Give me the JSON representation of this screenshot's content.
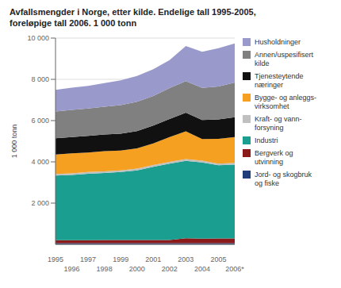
{
  "chart_data": {
    "type": "area",
    "title": "Avfallsmengder i Norge, etter kilde. Endelige tall 1995-2005,\nforeløpige tall 2006. 1 000 tonn",
    "ylabel": "1 000 tonn",
    "categories": [
      "1995",
      "1996",
      "1997",
      "1998",
      "1999",
      "2000",
      "2001",
      "2002",
      "2003",
      "2004",
      "2005",
      "2006*"
    ],
    "series": [
      {
        "name": "Jord- og skogbruk\nog fiske",
        "color": "#1f3d7a",
        "values": [
          55,
          55,
          55,
          55,
          55,
          55,
          55,
          55,
          55,
          55,
          55,
          55
        ]
      },
      {
        "name": "Bergverk og\nutvinning",
        "color": "#8b1a1a",
        "values": [
          150,
          150,
          150,
          155,
          155,
          155,
          155,
          160,
          240,
          220,
          230,
          235
        ]
      },
      {
        "name": "Industri",
        "color": "#1a9e8f",
        "values": [
          3130,
          3160,
          3220,
          3250,
          3300,
          3380,
          3550,
          3700,
          3750,
          3700,
          3550,
          3580
        ]
      },
      {
        "name": "Kraft- og vann-\nforsyning",
        "color": "#c0c0c0",
        "values": [
          75,
          75,
          80,
          80,
          80,
          80,
          85,
          85,
          90,
          85,
          80,
          85
        ]
      },
      {
        "name": "Bygge- og anleggs-\nvirksomhet",
        "color": "#f5a020",
        "values": [
          950,
          970,
          950,
          980,
          960,
          980,
          1050,
          1200,
          1350,
          1050,
          1200,
          1250
        ]
      },
      {
        "name": "Tjenesteytende\nnæringer",
        "color": "#111111",
        "values": [
          780,
          790,
          800,
          810,
          820,
          840,
          860,
          880,
          900,
          920,
          940,
          960
        ]
      },
      {
        "name": "Annen/uspesifisert\nkilde",
        "color": "#808080",
        "values": [
          1300,
          1320,
          1330,
          1340,
          1380,
          1420,
          1440,
          1500,
          1530,
          1560,
          1600,
          1680
        ]
      },
      {
        "name": "Husholdninger",
        "color": "#9999cc",
        "values": [
          1050,
          1080,
          1100,
          1150,
          1200,
          1250,
          1300,
          1350,
          1700,
          1750,
          1850,
          1900
        ]
      }
    ],
    "stacked": true,
    "ylim": [
      0,
      10000
    ],
    "yticks": [
      {
        "value": 2000,
        "label": "2 000"
      },
      {
        "value": 4000,
        "label": "4 000"
      },
      {
        "value": 6000,
        "label": "6 000"
      },
      {
        "value": 8000,
        "label": "8 000"
      },
      {
        "value": 10000,
        "label": "10 000"
      }
    ],
    "grid": true,
    "legend": "right"
  }
}
